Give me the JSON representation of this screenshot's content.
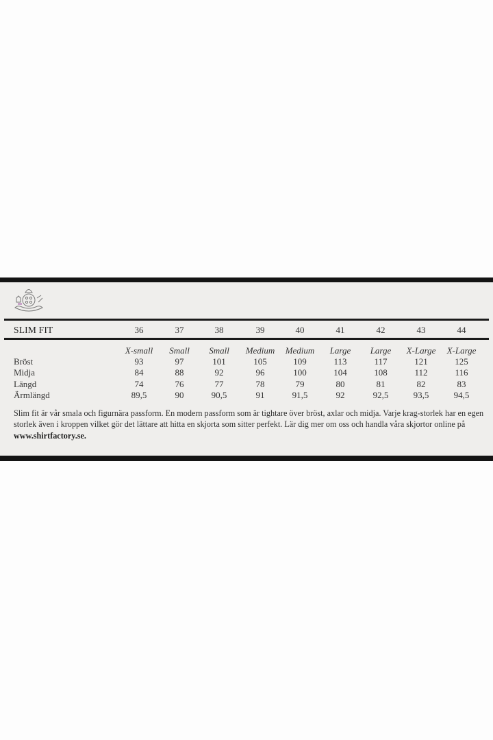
{
  "table": {
    "title": "SLIM FIT",
    "collar_sizes": [
      "36",
      "37",
      "38",
      "39",
      "40",
      "41",
      "42",
      "43",
      "44"
    ],
    "size_names": [
      "X-small",
      "Small",
      "Small",
      "Medium",
      "Medium",
      "Large",
      "Large",
      "X-Large",
      "X-Large"
    ],
    "rows": [
      {
        "label": "Bröst",
        "values": [
          "93",
          "97",
          "101",
          "105",
          "109",
          "113",
          "117",
          "121",
          "125"
        ]
      },
      {
        "label": "Midja",
        "values": [
          "84",
          "88",
          "92",
          "96",
          "100",
          "104",
          "108",
          "112",
          "116"
        ]
      },
      {
        "label": "Längd",
        "values": [
          "74",
          "76",
          "77",
          "78",
          "79",
          "80",
          "81",
          "82",
          "83"
        ]
      },
      {
        "label": "Ärmlängd",
        "values": [
          "89,5",
          "90",
          "90,5",
          "91",
          "91,5",
          "92",
          "92,5",
          "93,5",
          "94,5"
        ]
      }
    ]
  },
  "description": {
    "text": "Slim fit är vår smala och figurnära passform. En modern passform som är tightare över bröst, axlar och midja. Varje krag-storlek har en egen storlek även i kroppen vilket gör det lättare att hitta en skjorta som sitter perfekt. Lär dig mer om oss och handla våra skjortor online på ",
    "link": "www.shirtfactory.se."
  },
  "logo": {
    "icon": "crest-logo-icon"
  }
}
